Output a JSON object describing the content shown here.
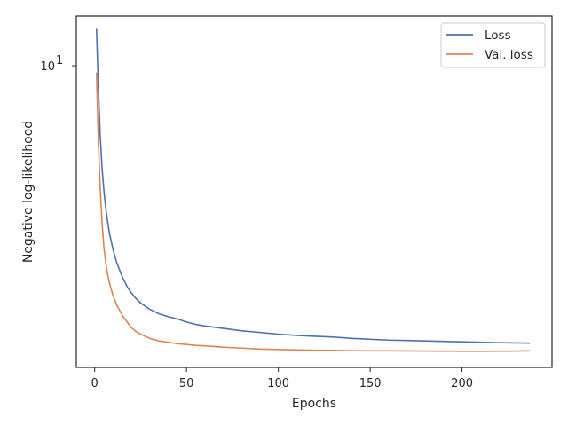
{
  "chart_data": {
    "type": "line",
    "xlabel": "Epochs",
    "ylabel": "Negative log-likelihood",
    "yscale": "log",
    "xlim": [
      -10,
      249
    ],
    "ylim": [
      1.62,
      13.5
    ],
    "x_ticks": [
      0,
      50,
      100,
      150,
      200
    ],
    "y_ticks": [
      {
        "value": 10,
        "base": "10",
        "exp": "1"
      }
    ],
    "legend_position": "top-right",
    "grid": false,
    "x": [
      1,
      2,
      3,
      4,
      5,
      6,
      7,
      8,
      10,
      12,
      15,
      18,
      20,
      22,
      25,
      30,
      35,
      40,
      45,
      50,
      55,
      60,
      70,
      80,
      90,
      100,
      110,
      120,
      130,
      140,
      150,
      160,
      170,
      180,
      190,
      200,
      210,
      220,
      230,
      237
    ],
    "series": [
      {
        "name": "Loss",
        "color": "#4c72b0",
        "values": [
          12.5,
          8.8,
          6.6,
          5.4,
          4.72,
          4.25,
          3.92,
          3.65,
          3.3,
          3.05,
          2.8,
          2.62,
          2.54,
          2.47,
          2.39,
          2.3,
          2.24,
          2.2,
          2.17,
          2.13,
          2.1,
          2.08,
          2.05,
          2.02,
          2.0,
          1.98,
          1.965,
          1.955,
          1.945,
          1.93,
          1.92,
          1.91,
          1.905,
          1.9,
          1.895,
          1.89,
          1.885,
          1.88,
          1.878,
          1.875
        ]
      },
      {
        "name": "Val. loss",
        "color": "#dd8452",
        "values": [
          9.6,
          6.3,
          4.8,
          3.9,
          3.35,
          3.05,
          2.85,
          2.7,
          2.5,
          2.36,
          2.22,
          2.12,
          2.06,
          2.02,
          1.98,
          1.93,
          1.9,
          1.885,
          1.87,
          1.86,
          1.85,
          1.845,
          1.83,
          1.82,
          1.81,
          1.805,
          1.8,
          1.797,
          1.795,
          1.792,
          1.79,
          1.79,
          1.789,
          1.788,
          1.787,
          1.786,
          1.786,
          1.787,
          1.788,
          1.79
        ]
      }
    ]
  }
}
